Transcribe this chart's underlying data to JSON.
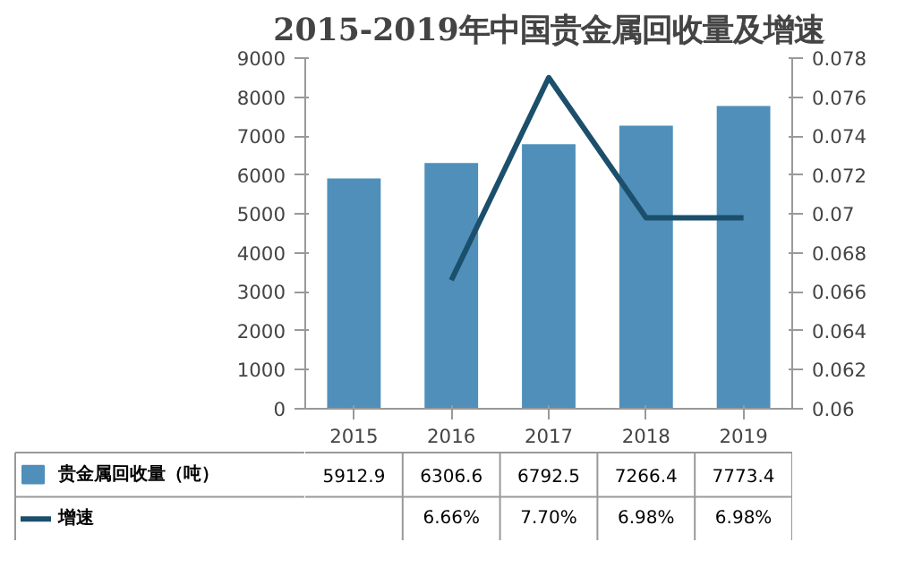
{
  "chart_data": {
    "type": "bar",
    "title": "2015-2019年中国贵金属回收量及增速",
    "categories": [
      "2015",
      "2016",
      "2017",
      "2018",
      "2019"
    ],
    "series": [
      {
        "name": "贵金属回收量（吨）",
        "color": "#4f8fba",
        "values": [
          5912.9,
          6306.6,
          6792.5,
          7266.4,
          7773.4
        ],
        "value_labels": [
          "5912.9",
          "6306.6",
          "6792.5",
          "7266.4",
          "7773.4"
        ]
      },
      {
        "name": "增速",
        "type": "line",
        "axis": "y2",
        "color": "#1b4f6b",
        "values": [
          null,
          0.0666,
          0.077,
          0.0698,
          0.0698
        ],
        "value_labels": [
          null,
          "6.66%",
          "7.70%",
          "6.98%",
          "6.98%"
        ]
      }
    ],
    "ylim": [
      0,
      9000
    ],
    "yticks": [
      0,
      1000,
      2000,
      3000,
      4000,
      5000,
      6000,
      7000,
      8000,
      9000
    ],
    "y2lim": [
      0.06,
      0.078
    ],
    "y2ticks": [
      0.06,
      0.062,
      0.064,
      0.066,
      0.068,
      0.07,
      0.072,
      0.074,
      0.076,
      0.078
    ],
    "grid": false,
    "legend": "bottom",
    "marker": "none",
    "line_style": "solid"
  }
}
